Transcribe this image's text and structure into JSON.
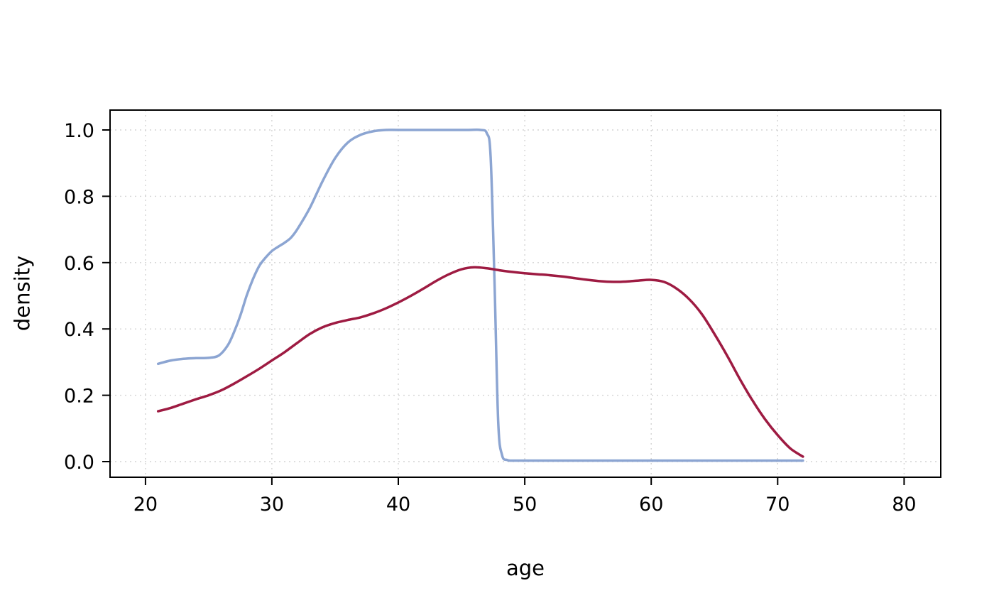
{
  "figure": {
    "background": "#ffffff"
  },
  "chart_data": {
    "type": "line",
    "title": "",
    "xlabel": "age",
    "ylabel": "density",
    "xlim": [
      17.2,
      82.9
    ],
    "ylim": [
      -0.047,
      1.06
    ],
    "grid": true,
    "legend": "none",
    "x_ticks": [
      {
        "value": 20,
        "label": "20"
      },
      {
        "value": 30,
        "label": "30"
      },
      {
        "value": 40,
        "label": "40"
      },
      {
        "value": 50,
        "label": "50"
      },
      {
        "value": 60,
        "label": "60"
      },
      {
        "value": 70,
        "label": "70"
      },
      {
        "value": 80,
        "label": "80"
      }
    ],
    "y_ticks": [
      {
        "value": 0.0,
        "label": "0.0"
      },
      {
        "value": 0.2,
        "label": "0.2"
      },
      {
        "value": 0.4,
        "label": "0.4"
      },
      {
        "value": 0.6,
        "label": "0.6"
      },
      {
        "value": 0.8,
        "label": "0.8"
      },
      {
        "value": 1.0,
        "label": "1.0"
      }
    ],
    "series": [
      {
        "name": "blue",
        "color": "#8CA5D2",
        "x": [
          21,
          22,
          23,
          24,
          25,
          25.8,
          26.5,
          27,
          27.5,
          28,
          28.5,
          29,
          29.5,
          30,
          30.5,
          31,
          31.5,
          32,
          33,
          34,
          35,
          36,
          37,
          38,
          39,
          40,
          42,
          44,
          45.5,
          46.5,
          47,
          47.3,
          47.6,
          47.9,
          48.2,
          48.6,
          49,
          50,
          55,
          60,
          65,
          70,
          72
        ],
        "y": [
          0.295,
          0.305,
          0.31,
          0.312,
          0.313,
          0.32,
          0.35,
          0.39,
          0.44,
          0.5,
          0.55,
          0.59,
          0.615,
          0.635,
          0.648,
          0.66,
          0.675,
          0.7,
          0.765,
          0.845,
          0.915,
          0.962,
          0.985,
          0.996,
          1.0,
          1.0,
          1.0,
          1.0,
          1.0,
          1.0,
          0.99,
          0.92,
          0.55,
          0.12,
          0.02,
          0.005,
          0.003,
          0.003,
          0.003,
          0.003,
          0.003,
          0.003,
          0.003
        ]
      },
      {
        "name": "dark-red",
        "color": "#9E1B42",
        "x": [
          21,
          22,
          23,
          24,
          25,
          26,
          27,
          28,
          29,
          30,
          31,
          32,
          33,
          34,
          35,
          36,
          37,
          38,
          39,
          40,
          41,
          42,
          43,
          44,
          45,
          46,
          47,
          48,
          49,
          50,
          51,
          52,
          53,
          54,
          55,
          56,
          57,
          58,
          59,
          60,
          61,
          62,
          63,
          64,
          65,
          66,
          67,
          68,
          69,
          70,
          71,
          72
        ],
        "y": [
          0.152,
          0.162,
          0.175,
          0.188,
          0.2,
          0.215,
          0.235,
          0.257,
          0.28,
          0.305,
          0.33,
          0.358,
          0.385,
          0.405,
          0.418,
          0.427,
          0.435,
          0.447,
          0.462,
          0.48,
          0.5,
          0.522,
          0.545,
          0.565,
          0.58,
          0.586,
          0.583,
          0.577,
          0.572,
          0.568,
          0.565,
          0.562,
          0.558,
          0.553,
          0.548,
          0.544,
          0.542,
          0.543,
          0.546,
          0.548,
          0.542,
          0.522,
          0.49,
          0.445,
          0.385,
          0.32,
          0.25,
          0.185,
          0.128,
          0.08,
          0.04,
          0.015
        ]
      }
    ]
  }
}
